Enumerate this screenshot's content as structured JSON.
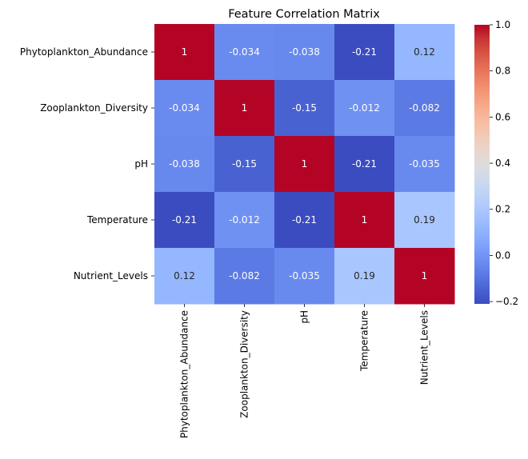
{
  "chart_data": {
    "type": "heatmap",
    "title": "Feature Correlation Matrix",
    "xlabel": "",
    "ylabel": "",
    "row_labels": [
      "Phytoplankton_Abundance",
      "Zooplankton_Diversity",
      "pH",
      "Temperature",
      "Nutrient_Levels"
    ],
    "col_labels": [
      "Phytoplankton_Abundance",
      "Zooplankton_Diversity",
      "pH",
      "Temperature",
      "Nutrient_Levels"
    ],
    "values": [
      [
        1,
        -0.034,
        -0.038,
        -0.21,
        0.12
      ],
      [
        -0.034,
        1,
        -0.15,
        -0.012,
        -0.082
      ],
      [
        -0.038,
        -0.15,
        1,
        -0.21,
        -0.035
      ],
      [
        -0.21,
        -0.012,
        -0.21,
        1,
        0.19
      ],
      [
        0.12,
        -0.082,
        -0.035,
        0.19,
        1
      ]
    ],
    "annotations": [
      [
        "1",
        "-0.034",
        "-0.038",
        "-0.21",
        "0.12"
      ],
      [
        "-0.034",
        "1",
        "-0.15",
        "-0.012",
        "-0.082"
      ],
      [
        "-0.038",
        "-0.15",
        "1",
        "-0.21",
        "-0.035"
      ],
      [
        "-0.21",
        "-0.012",
        "-0.21",
        "1",
        "0.19"
      ],
      [
        "0.12",
        "-0.082",
        "-0.035",
        "0.19",
        "1"
      ]
    ],
    "colormap": "coolwarm",
    "vmin": -0.21,
    "vmax": 1.0,
    "colorbar": {
      "ticks": [
        -0.2,
        0.0,
        0.2,
        0.4,
        0.6,
        0.8,
        1.0
      ],
      "tick_labels": [
        "−0.2",
        "0.0",
        "0.2",
        "0.4",
        "0.6",
        "0.8",
        "1.0"
      ],
      "position": "right"
    },
    "grid": false
  }
}
